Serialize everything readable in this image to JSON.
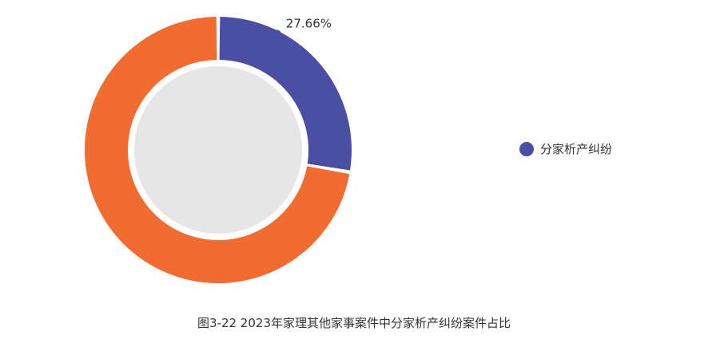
{
  "chart_data": {
    "type": "pie",
    "style": "donut",
    "title": "图3-22  2023年家理其他家事案件中分家析产纠纷案件占比",
    "slices": [
      {
        "name": "分家析产纠纷",
        "value": 27.66,
        "label": "27.66%",
        "color": "#4b4fa3"
      },
      {
        "value": 72.34,
        "color": "#f26b30"
      }
    ],
    "center_color": "#e6e6e7",
    "legend": {
      "position": "right",
      "entries": [
        "分家析产纠纷"
      ]
    }
  }
}
